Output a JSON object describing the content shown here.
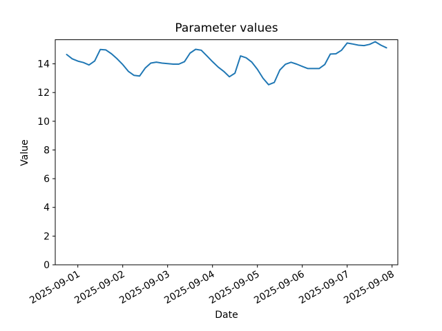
{
  "chart_data": {
    "type": "line",
    "title": "Parameter values",
    "xlabel": "Date",
    "ylabel": "Value",
    "line_color": "#1f77b4",
    "background_color": "#ffffff",
    "grid": false,
    "legend": null,
    "ylim": [
      0,
      15.68
    ],
    "y_ticks": [
      0,
      2,
      4,
      6,
      8,
      10,
      12,
      14
    ],
    "x_tick_labels": [
      "2025-09-01",
      "2025-09-02",
      "2025-09-03",
      "2025-09-04",
      "2025-09-05",
      "2025-09-06",
      "2025-09-07",
      "2025-09-08"
    ],
    "series": [
      {
        "name": "Parameter values",
        "x": [
          "2025-08-31T18:00:00Z",
          "2025-08-31T21:00:00Z",
          "2025-09-01T00:00:00Z",
          "2025-09-01T03:00:00Z",
          "2025-09-01T06:00:00Z",
          "2025-09-01T09:00:00Z",
          "2025-09-01T12:00:00Z",
          "2025-09-01T15:00:00Z",
          "2025-09-01T18:00:00Z",
          "2025-09-01T21:00:00Z",
          "2025-09-02T00:00:00Z",
          "2025-09-02T03:00:00Z",
          "2025-09-02T06:00:00Z",
          "2025-09-02T09:00:00Z",
          "2025-09-02T12:00:00Z",
          "2025-09-02T15:00:00Z",
          "2025-09-02T18:00:00Z",
          "2025-09-02T21:00:00Z",
          "2025-09-03T00:00:00Z",
          "2025-09-03T03:00:00Z",
          "2025-09-03T06:00:00Z",
          "2025-09-03T09:00:00Z",
          "2025-09-03T12:00:00Z",
          "2025-09-03T15:00:00Z",
          "2025-09-03T18:00:00Z",
          "2025-09-03T21:00:00Z",
          "2025-09-04T00:00:00Z",
          "2025-09-04T03:00:00Z",
          "2025-09-04T06:00:00Z",
          "2025-09-04T09:00:00Z",
          "2025-09-04T12:00:00Z",
          "2025-09-04T15:00:00Z",
          "2025-09-04T18:00:00Z",
          "2025-09-04T21:00:00Z",
          "2025-09-05T00:00:00Z",
          "2025-09-05T03:00:00Z",
          "2025-09-05T06:00:00Z",
          "2025-09-05T09:00:00Z",
          "2025-09-05T12:00:00Z",
          "2025-09-05T15:00:00Z",
          "2025-09-05T18:00:00Z",
          "2025-09-05T21:00:00Z",
          "2025-09-06T00:00:00Z",
          "2025-09-06T03:00:00Z",
          "2025-09-06T06:00:00Z",
          "2025-09-06T09:00:00Z",
          "2025-09-06T12:00:00Z",
          "2025-09-06T15:00:00Z",
          "2025-09-06T18:00:00Z",
          "2025-09-06T21:00:00Z",
          "2025-09-07T00:00:00Z",
          "2025-09-07T03:00:00Z",
          "2025-09-07T06:00:00Z",
          "2025-09-07T09:00:00Z",
          "2025-09-07T12:00:00Z",
          "2025-09-07T15:00:00Z",
          "2025-09-07T18:00:00Z",
          "2025-09-07T21:00:00Z"
        ],
        "values": [
          14.65,
          14.35,
          14.19,
          14.09,
          13.92,
          14.2,
          15.0,
          14.97,
          14.7,
          14.35,
          13.95,
          13.48,
          13.2,
          13.15,
          13.7,
          14.05,
          14.12,
          14.05,
          14.02,
          13.98,
          13.98,
          14.15,
          14.75,
          15.01,
          14.95,
          14.55,
          14.15,
          13.78,
          13.48,
          13.1,
          13.35,
          14.55,
          14.42,
          14.12,
          13.62,
          13.0,
          12.55,
          12.7,
          13.57,
          13.97,
          14.11,
          13.98,
          13.82,
          13.67,
          13.67,
          13.67,
          13.95,
          14.68,
          14.7,
          14.95,
          15.45,
          15.38,
          15.3,
          15.27,
          15.36,
          15.54,
          15.3,
          15.12
        ]
      }
    ]
  }
}
